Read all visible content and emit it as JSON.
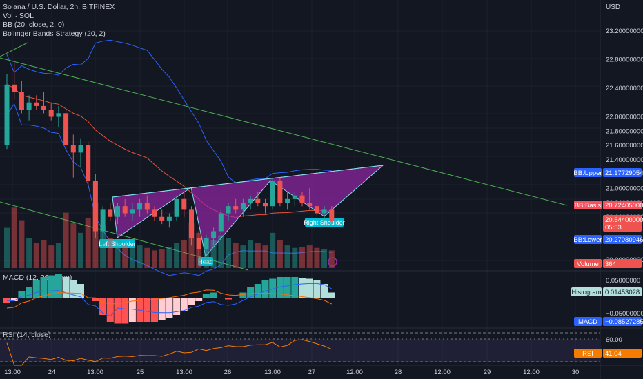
{
  "legend": {
    "title": "Solana / U.S. Dollar, 2h, BITFINEX",
    "vol": "Vol · SOL",
    "bb": "BB (20, close, 2, 0)",
    "bbs": "Bollinger Bands Strategy (20, 2)",
    "macd": "MACD (12, 26, close)",
    "rsi": "RSI (14, close)"
  },
  "currency": "USD",
  "colors": {
    "background": "#131722",
    "up": "#26a69a",
    "down": "#ef5350",
    "bb_band": "#2962ff",
    "bb_basis": "#e5553c",
    "trend_line": "#4caf50",
    "pattern_fill": "#9c27b0",
    "macd_hist_up_strong": "#26a69a",
    "macd_hist_up_weak": "#b2dfdb",
    "macd_hist_down_strong": "#ff5252",
    "macd_hist_down_weak": "#ffcdd2",
    "rsi": "#f57c00"
  },
  "chart_data": {
    "type": "candlestick",
    "price_axis": {
      "ticks": [
        "23.20000000",
        "22.80000000",
        "22.40000000",
        "22.00000000",
        "21.80000000",
        "21.60000000",
        "21.40000000",
        "21.00000000",
        "20.80000000",
        "20.60000000",
        "20.00000000"
      ],
      "tick_values": [
        23.2,
        22.8,
        22.4,
        22.0,
        21.8,
        21.6,
        21.4,
        21.0,
        20.8,
        20.6,
        20.0
      ]
    },
    "time_axis": {
      "labels": [
        "13:00",
        "24",
        "13:00",
        "25",
        "13:00",
        "26",
        "13:00",
        "27",
        "12:00",
        "28",
        "12:00",
        "29",
        "12:00",
        "30"
      ]
    },
    "candles": [
      {
        "o": 21.6,
        "h": 22.6,
        "l": 21.55,
        "c": 22.45
      },
      {
        "o": 22.45,
        "h": 22.75,
        "l": 22.25,
        "c": 22.35
      },
      {
        "o": 22.35,
        "h": 22.5,
        "l": 22.05,
        "c": 22.1
      },
      {
        "o": 22.1,
        "h": 22.3,
        "l": 21.95,
        "c": 22.2
      },
      {
        "o": 22.2,
        "h": 22.3,
        "l": 22.1,
        "c": 22.15
      },
      {
        "o": 22.15,
        "h": 22.35,
        "l": 22.05,
        "c": 22.1
      },
      {
        "o": 22.1,
        "h": 22.2,
        "l": 21.95,
        "c": 22.0
      },
      {
        "o": 22.0,
        "h": 22.15,
        "l": 21.85,
        "c": 22.05
      },
      {
        "o": 22.05,
        "h": 22.1,
        "l": 21.5,
        "c": 21.6
      },
      {
        "o": 21.6,
        "h": 21.75,
        "l": 21.15,
        "c": 21.5
      },
      {
        "o": 21.5,
        "h": 21.7,
        "l": 21.3,
        "c": 21.6
      },
      {
        "o": 21.6,
        "h": 21.65,
        "l": 21.0,
        "c": 21.1
      },
      {
        "o": 21.1,
        "h": 21.2,
        "l": 20.3,
        "c": 20.4
      },
      {
        "o": 20.4,
        "h": 20.75,
        "l": 20.2,
        "c": 20.7
      },
      {
        "o": 20.7,
        "h": 20.8,
        "l": 20.55,
        "c": 20.6
      },
      {
        "o": 20.6,
        "h": 20.8,
        "l": 20.5,
        "c": 20.75
      },
      {
        "o": 20.75,
        "h": 20.85,
        "l": 20.6,
        "c": 20.65
      },
      {
        "o": 20.65,
        "h": 20.8,
        "l": 20.55,
        "c": 20.7
      },
      {
        "o": 20.7,
        "h": 20.85,
        "l": 20.6,
        "c": 20.8
      },
      {
        "o": 20.8,
        "h": 20.9,
        "l": 20.65,
        "c": 20.7
      },
      {
        "o": 20.7,
        "h": 20.75,
        "l": 20.55,
        "c": 20.6
      },
      {
        "o": 20.6,
        "h": 20.7,
        "l": 20.5,
        "c": 20.55
      },
      {
        "o": 20.55,
        "h": 20.65,
        "l": 20.45,
        "c": 20.6
      },
      {
        "o": 20.6,
        "h": 20.9,
        "l": 20.55,
        "c": 20.85
      },
      {
        "o": 20.85,
        "h": 20.95,
        "l": 20.6,
        "c": 20.7
      },
      {
        "o": 20.7,
        "h": 20.75,
        "l": 20.2,
        "c": 20.3
      },
      {
        "o": 20.3,
        "h": 20.4,
        "l": 20.05,
        "c": 20.15
      },
      {
        "o": 20.15,
        "h": 20.35,
        "l": 20.1,
        "c": 20.3
      },
      {
        "o": 20.3,
        "h": 20.45,
        "l": 20.2,
        "c": 20.4
      },
      {
        "o": 20.4,
        "h": 20.7,
        "l": 20.35,
        "c": 20.65
      },
      {
        "o": 20.65,
        "h": 20.8,
        "l": 20.55,
        "c": 20.75
      },
      {
        "o": 20.75,
        "h": 20.85,
        "l": 20.65,
        "c": 20.7
      },
      {
        "o": 20.7,
        "h": 20.85,
        "l": 20.6,
        "c": 20.8
      },
      {
        "o": 20.8,
        "h": 20.9,
        "l": 20.7,
        "c": 20.85
      },
      {
        "o": 20.85,
        "h": 20.95,
        "l": 20.75,
        "c": 20.8
      },
      {
        "o": 20.8,
        "h": 20.85,
        "l": 20.65,
        "c": 20.75
      },
      {
        "o": 20.75,
        "h": 21.15,
        "l": 20.7,
        "c": 21.1
      },
      {
        "o": 21.1,
        "h": 21.15,
        "l": 20.75,
        "c": 20.8
      },
      {
        "o": 20.8,
        "h": 20.95,
        "l": 20.7,
        "c": 20.85
      },
      {
        "o": 20.85,
        "h": 20.95,
        "l": 20.75,
        "c": 20.9
      },
      {
        "o": 20.9,
        "h": 20.95,
        "l": 20.75,
        "c": 20.8
      },
      {
        "o": 20.8,
        "h": 21.0,
        "l": 20.7,
        "c": 20.75
      },
      {
        "o": 20.75,
        "h": 20.8,
        "l": 20.6,
        "c": 20.65
      },
      {
        "o": 20.65,
        "h": 20.75,
        "l": 20.55,
        "c": 20.7
      },
      {
        "o": 20.7,
        "h": 20.75,
        "l": 20.5,
        "c": 20.54
      }
    ],
    "volume": [
      80,
      120,
      95,
      60,
      50,
      55,
      45,
      50,
      110,
      90,
      70,
      100,
      130,
      85,
      60,
      55,
      45,
      40,
      45,
      40,
      35,
      38,
      42,
      50,
      55,
      90,
      70,
      60,
      55,
      65,
      60,
      50,
      45,
      55,
      50,
      45,
      70,
      55,
      45,
      40,
      42,
      45,
      40,
      38,
      35
    ],
    "pattern": {
      "labels": [
        "Left Shoulder",
        "Head",
        "Right Shoulder"
      ]
    },
    "tags": {
      "bb_upper": {
        "label": "BB:Upper",
        "value": "21.17729054"
      },
      "bb_basis": {
        "label": "BB:Basis",
        "value": "20.72405000"
      },
      "last_price": {
        "value": "20.54400000",
        "countdown": "05:53"
      },
      "bb_lower": {
        "label": "BB:Lower",
        "value": "20.27080946"
      },
      "volume": {
        "label": "Volume",
        "value": "364"
      },
      "histogram": {
        "label": "Histogram",
        "value": "0.01453028"
      },
      "macd": {
        "label": "MACD",
        "value": "−0.08527285"
      },
      "rsi": {
        "label": "RSI",
        "value": "41.04"
      }
    },
    "macd_axis": {
      "ticks": [
        "0.05000000",
        "−0.05000000"
      ]
    },
    "macd_hist": [
      -0.015,
      -0.01,
      0.02,
      0.03,
      0.05,
      0.06,
      0.065,
      0.07,
      0.06,
      0.05,
      0.04,
      0.0,
      -0.01,
      -0.05,
      -0.07,
      -0.075,
      -0.075,
      -0.07,
      -0.07,
      -0.07,
      -0.07,
      -0.065,
      -0.06,
      -0.05,
      -0.04,
      -0.02,
      -0.01,
      0.01,
      0.015,
      0.0,
      -0.005,
      0.0,
      0.015,
      0.03,
      0.04,
      0.05,
      0.055,
      0.06,
      0.06,
      0.06,
      0.058,
      0.055,
      0.05,
      0.04,
      0.015
    ],
    "rsi_axis": {
      "ticks": [
        "60.00"
      ]
    }
  }
}
